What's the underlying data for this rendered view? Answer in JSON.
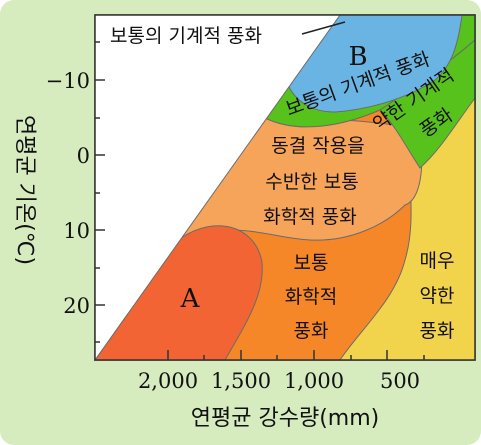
{
  "title": "",
  "y_axis": {
    "label": "연평균 기온(℃)",
    "ticks": [
      "−10",
      "0",
      "10",
      "20"
    ]
  },
  "x_axis": {
    "label": "연평균 강수량(mm)",
    "ticks": [
      "2,000",
      "1,500",
      "1,000",
      "500"
    ]
  },
  "regions": {
    "A": "A",
    "B": "B",
    "normal_mechanical": "보통의 기계적 풍화",
    "weak_mechanical": [
      "약한 기계적",
      "풍화"
    ],
    "frost_chemical": [
      "동결 작용을",
      "수반한 보통",
      "화학적 풍화"
    ],
    "normal_chemical": [
      "보통",
      "화학적",
      "풍화"
    ],
    "very_weak": [
      "매우",
      "약한",
      "풍화"
    ]
  },
  "colors": {
    "background": "#d6ecbf",
    "A": "#f26433",
    "B": "#6ab4e3",
    "mechanical": "#57c21c",
    "frost": "#f7a45b",
    "normal_chemical": "#f58728",
    "very_weak": "#f2d34c"
  }
}
